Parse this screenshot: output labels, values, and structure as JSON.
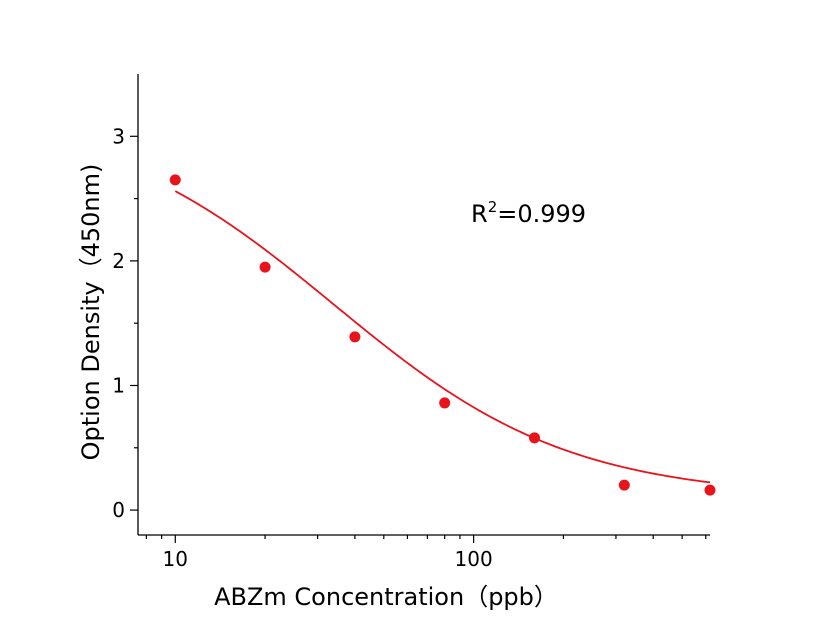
{
  "chart_data": {
    "type": "scatter",
    "title": "",
    "xlabel": "ABZm Concentration（ppb）",
    "ylabel": "Option Density（450nm)",
    "xscale": "log",
    "xlim": [
      7.5,
      620
    ],
    "ylim": [
      -0.2,
      3.5
    ],
    "xticks": [
      {
        "value": 10,
        "label": "10"
      },
      {
        "value": 100,
        "label": "100"
      }
    ],
    "xminor_ticks": [
      20,
      30,
      40,
      50,
      60,
      70,
      80,
      90,
      200,
      300,
      400,
      500,
      600
    ],
    "yticks": [
      {
        "value": 0,
        "label": "0"
      },
      {
        "value": 1,
        "label": "1"
      },
      {
        "value": 2,
        "label": "2"
      },
      {
        "value": 3,
        "label": "3"
      }
    ],
    "grid": false,
    "points": {
      "color": "#e8141c",
      "x": [
        10,
        20,
        40,
        80,
        160,
        320,
        620
      ],
      "y": [
        2.65,
        1.95,
        1.39,
        0.86,
        0.58,
        0.2,
        0.16
      ]
    },
    "fit_curve": {
      "color": "#e8141c",
      "model": "four-parameter logistic",
      "top": 3.2,
      "bottom": 0.1,
      "ic50": 34,
      "hill_slope": 1.1
    },
    "annotation": {
      "base": "R",
      "superscript": "2",
      "text": "=0.999"
    }
  }
}
